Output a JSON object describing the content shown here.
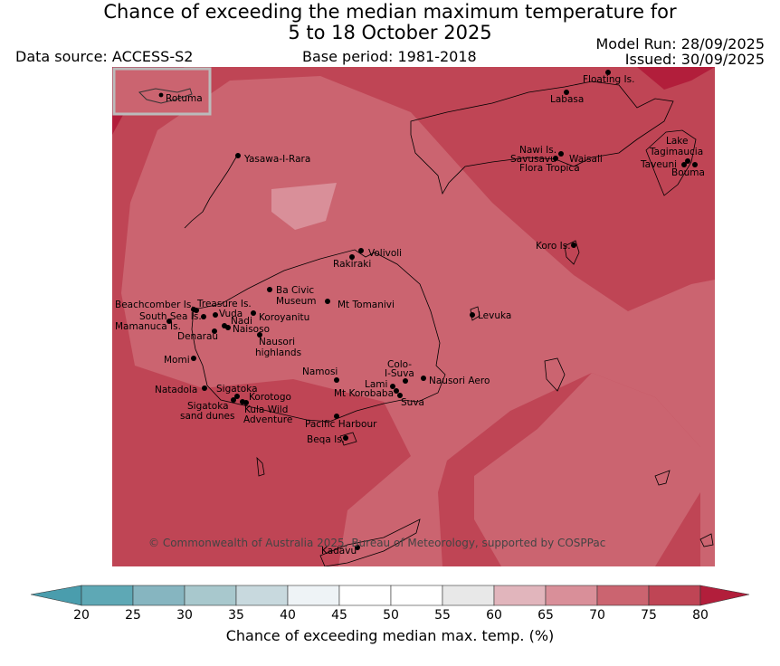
{
  "header": {
    "title_line1": "Chance of exceeding the median maximum temperature for",
    "title_line2": "5 to 18 October 2025",
    "data_source": "Data source: ACCESS-S2",
    "base_period": "Base period: 1981-2018",
    "model_run": "Model Run: 28/09/2025",
    "issued": "Issued: 30/09/2025"
  },
  "map": {
    "copyright": "© Commonwealth of Australia 2025, Bureau of Meteorology, supported by COSPPac",
    "inset_label": "Rotuma",
    "places": [
      "Floating Is.",
      "Labasa",
      "Yasawa-I-Rara",
      "Nawi Is.",
      "Savusavu",
      "Waisali",
      "Flora Tropica",
      "Lake",
      "Tagimaucia",
      "Taveuni",
      "Bouma",
      "Volivoli",
      "Rakiraki",
      "Koro Is.",
      "Ba Civic",
      "Museum",
      "Mt Tomanivi",
      "Beachcomber Is.",
      "Treasure Is.",
      "South Sea Is.",
      "Vuda",
      "Koroyanitu",
      "Nadi",
      "Mamanuca Is.",
      "Naisoso",
      "Denarau",
      "Nausori",
      "highlands",
      "Levuka",
      "Momi",
      "Colo-",
      "I-Suva",
      "Namosi",
      "Lami",
      "Nausori Aero",
      "Natadola",
      "Sigatoka",
      "Mt Korobaba",
      "Korotogo",
      "Suva",
      "Sigatoka",
      "sand dunes",
      "Kula Wild",
      "Adventure",
      "Pacific Harbour",
      "Beqa Is.",
      "Kadavu"
    ],
    "colors": {
      "c60_65": "#e1b5bc",
      "c65_70": "#d98f99",
      "c70_75": "#cb6470",
      "c75_80": "#bf4555",
      "c80p": "#b21e3b"
    }
  },
  "colorbar": {
    "label": "Chance of exceeding median max. temp. (%)",
    "ticks": [
      "20",
      "25",
      "30",
      "35",
      "40",
      "45",
      "50",
      "55",
      "60",
      "65",
      "70",
      "75",
      "80"
    ],
    "colors": [
      "#5ea8b5",
      "#86b5c0",
      "#a8c8cd",
      "#c8d9de",
      "#eef3f6",
      "#ffffff",
      "#ffffff",
      "#e8e8e8",
      "#e1b5bc",
      "#d98f99",
      "#cb6470",
      "#bf4555"
    ],
    "under_color": "#4a9dad",
    "over_color": "#b21e3b"
  }
}
